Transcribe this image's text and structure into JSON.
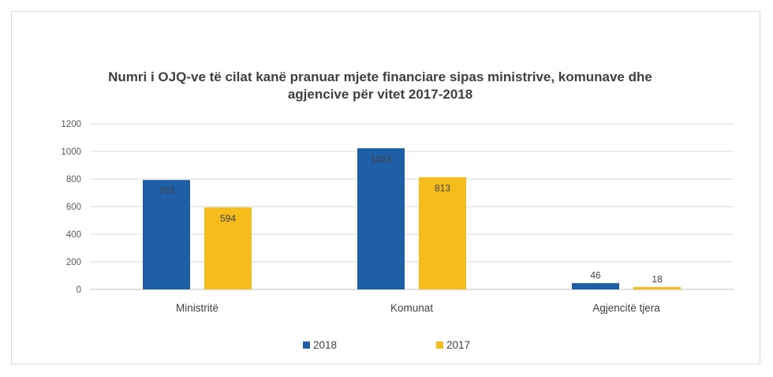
{
  "chart_data": {
    "type": "bar",
    "title": "Numri i OJQ-ve të cilat kanë pranuar mjete financiare sipas ministrive, komunave dhe agjencive për vitet 2017-2018",
    "title_lines": [
      "Numri i OJQ-ve të cilat kanë pranuar mjete financiare sipas ministrive, komunave dhe",
      "agjencive për vitet 2017-2018"
    ],
    "categories": [
      "Ministritë",
      "Komunat",
      "Agjencitë tjera"
    ],
    "series": [
      {
        "name": "2018",
        "values": [
          793,
          1023,
          46
        ],
        "color": "#1f5fa8"
      },
      {
        "name": "2017",
        "values": [
          594,
          813,
          18
        ],
        "color": "#f5bc1c"
      }
    ],
    "ylim": [
      0,
      1200
    ],
    "yticks": [
      0,
      200,
      400,
      600,
      800,
      1000,
      1200
    ],
    "xlabel": "",
    "ylabel": "",
    "grid": true,
    "legend_position": "bottom"
  },
  "colors": {
    "grid": "#d9d9d9",
    "axis": "#bfbfbf"
  }
}
